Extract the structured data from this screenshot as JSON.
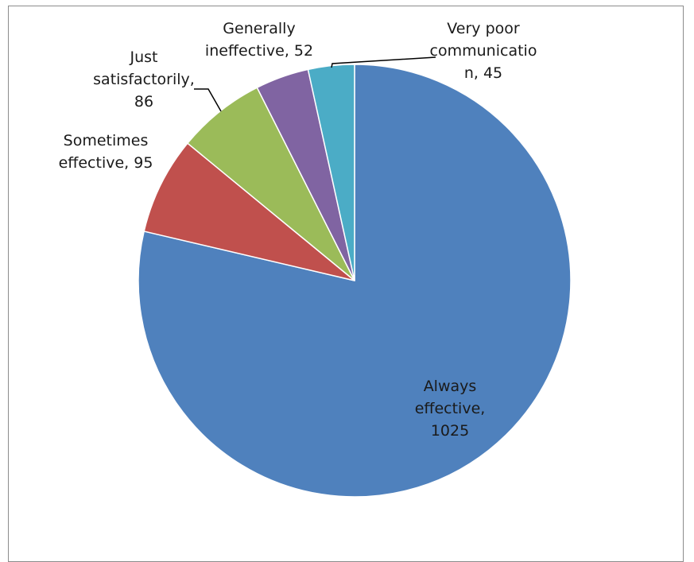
{
  "chart_data": {
    "type": "pie",
    "title": "",
    "slices": [
      {
        "label_lines": [
          "Always",
          "effective,",
          "1025"
        ],
        "category": "Always effective",
        "value": 1025,
        "color": "#4f81bd"
      },
      {
        "label_lines": [
          "Sometimes",
          "effective, 95"
        ],
        "category": "Sometimes effective",
        "value": 95,
        "color": "#c0504d"
      },
      {
        "label_lines": [
          "Just",
          "satisfactorily,",
          "86"
        ],
        "category": "Just satisfactorily",
        "value": 86,
        "color": "#9bbb59"
      },
      {
        "label_lines": [
          "Generally",
          "ineffective, 52"
        ],
        "category": "Generally ineffective",
        "value": 52,
        "color": "#8064a2"
      },
      {
        "label_lines": [
          "Very poor",
          "communicatio",
          "n, 45"
        ],
        "category": "Very poor communication",
        "value": 45,
        "color": "#4bacc6"
      }
    ],
    "legend": "none",
    "data_labels": "category, value"
  }
}
